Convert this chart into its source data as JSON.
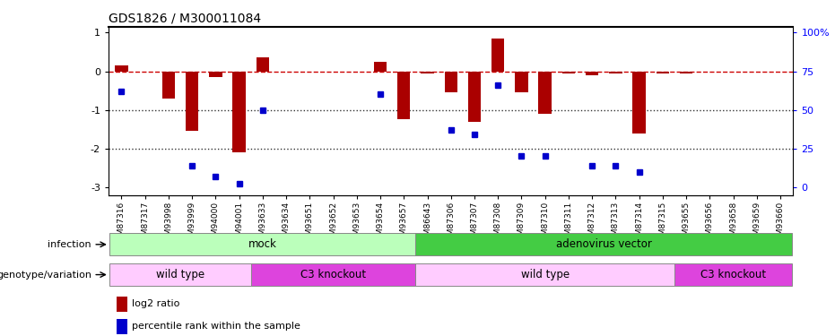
{
  "title": "GDS1826 / M300011084",
  "samples": [
    "GSM87316",
    "GSM87317",
    "GSM93998",
    "GSM93999",
    "GSM94000",
    "GSM94001",
    "GSM93633",
    "GSM93634",
    "GSM93651",
    "GSM93652",
    "GSM93653",
    "GSM93654",
    "GSM93657",
    "GSM86643",
    "GSM87306",
    "GSM87307",
    "GSM87308",
    "GSM87309",
    "GSM87310",
    "GSM87311",
    "GSM87312",
    "GSM87313",
    "GSM87314",
    "GSM87315",
    "GSM93655",
    "GSM93656",
    "GSM93658",
    "GSM93659",
    "GSM93660"
  ],
  "log2_ratio": [
    0.15,
    0.0,
    -0.7,
    -1.55,
    -0.15,
    -2.1,
    0.35,
    0.0,
    0.0,
    0.0,
    0.0,
    0.25,
    -1.25,
    -0.05,
    -0.55,
    -1.3,
    0.85,
    -0.55,
    -1.1,
    -0.05,
    -0.1,
    -0.05,
    -1.6,
    -0.05,
    -0.05,
    0.0,
    0.0,
    0.0,
    0.0
  ],
  "percentile": [
    62,
    0,
    0,
    14,
    7,
    2,
    50,
    0,
    0,
    0,
    0,
    60,
    0,
    0,
    37,
    34,
    66,
    20,
    20,
    0,
    14,
    14,
    10,
    0,
    0,
    0,
    0,
    0,
    0
  ],
  "infection_regions": [
    {
      "label": "mock",
      "start": 0,
      "end": 12,
      "color": "#bbffbb"
    },
    {
      "label": "adenovirus vector",
      "start": 13,
      "end": 28,
      "color": "#44cc44"
    }
  ],
  "genotype_regions": [
    {
      "label": "wild type",
      "start": 0,
      "end": 5,
      "color": "#ffccff"
    },
    {
      "label": "C3 knockout",
      "start": 6,
      "end": 12,
      "color": "#dd44dd"
    },
    {
      "label": "wild type",
      "start": 13,
      "end": 23,
      "color": "#ffccff"
    },
    {
      "label": "C3 knockout",
      "start": 24,
      "end": 28,
      "color": "#dd44dd"
    }
  ],
  "bar_color": "#aa0000",
  "dot_color": "#0000cc",
  "dashed_line_color": "#cc0000",
  "dotted_line_color": "#333333",
  "ylim": [
    -3.2,
    1.15
  ],
  "yticks": [
    1,
    0,
    -1,
    -2,
    -3
  ],
  "right_yticks": [
    100,
    75,
    50,
    25,
    0
  ],
  "right_ytick_positions": [
    1,
    0,
    -1,
    -2,
    -3
  ],
  "background_color": "#ffffff",
  "legend_log2_label": "log2 ratio",
  "legend_percentile_label": "percentile rank within the sample"
}
